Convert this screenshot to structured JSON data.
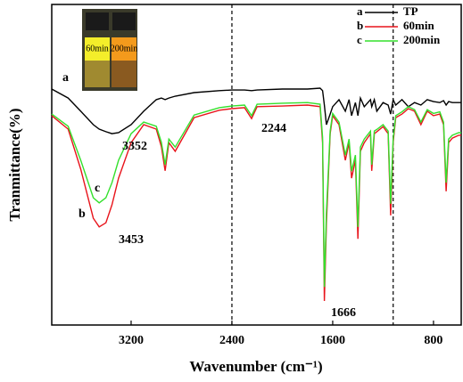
{
  "chart_data": {
    "type": "line",
    "x_label": "Wavenumber (cm⁻¹)",
    "y_label": "Tranmittance(%)",
    "x": [
      3830,
      3700,
      3600,
      3500,
      3453,
      3400,
      3352,
      3300,
      3200,
      3100,
      3000,
      2960,
      2930,
      2900,
      2850,
      2700,
      2500,
      2400,
      2300,
      2244,
      2200,
      2000,
      1800,
      1700,
      1680,
      1666,
      1650,
      1620,
      1600,
      1550,
      1500,
      1470,
      1450,
      1420,
      1400,
      1380,
      1350,
      1300,
      1290,
      1270,
      1250,
      1200,
      1160,
      1140,
      1120,
      1100,
      1050,
      1000,
      950,
      900,
      850,
      800,
      750,
      720,
      700,
      680,
      650,
      600,
      580
    ],
    "series": [
      {
        "name": "TP",
        "label": "a",
        "color": "#000000",
        "values": [
          73.6,
          70.8,
          66.7,
          62.5,
          61.1,
          60.3,
          59.7,
          60,
          62.5,
          66.7,
          70.3,
          70.8,
          70.3,
          70.8,
          71.4,
          72.5,
          73.1,
          73.3,
          73.3,
          73.1,
          73.3,
          73.6,
          73.6,
          73.9,
          73.1,
          68.6,
          62.5,
          65.8,
          68.1,
          70.3,
          66.7,
          70.3,
          65.3,
          69.4,
          65.3,
          70.8,
          68.1,
          70.3,
          68.1,
          70.3,
          66.7,
          69.4,
          68.6,
          65.8,
          70.3,
          68.6,
          70.3,
          68.1,
          69.4,
          68.6,
          70.3,
          69.7,
          69.4,
          70,
          68.6,
          69.7,
          69.4,
          69.4,
          69.4
        ]
      },
      {
        "name": "60min",
        "label": "b",
        "color": "#e8141b",
        "values": [
          65.3,
          61.1,
          48.6,
          33.3,
          30.6,
          31.9,
          37.5,
          45.8,
          56.9,
          62.5,
          61.1,
          55.6,
          48.1,
          56.9,
          54.2,
          64.7,
          67,
          67.5,
          67.8,
          64.4,
          68.1,
          68.3,
          68.6,
          68.1,
          56.9,
          7.5,
          31.9,
          59.7,
          65.3,
          62.5,
          51.4,
          56.9,
          45.8,
          51.4,
          26.9,
          54.2,
          56.9,
          59.7,
          48.1,
          59.7,
          60.3,
          61.9,
          59.7,
          34.2,
          56.9,
          64.7,
          65.8,
          67.5,
          66.7,
          62.5,
          66.7,
          65.3,
          65.8,
          62.5,
          41.7,
          56.9,
          58.3,
          59.2,
          59.2
        ]
      },
      {
        "name": "200min",
        "label": "c",
        "color": "#33e02c",
        "values": [
          65.8,
          62,
          51.4,
          39.7,
          38.1,
          39.7,
          44.4,
          51.4,
          59.7,
          63.3,
          62,
          57,
          50,
          58,
          55.5,
          65.5,
          67.8,
          68.3,
          68.6,
          65.3,
          68.9,
          69.2,
          69.4,
          68.9,
          58.5,
          11.9,
          35,
          60.5,
          66,
          63.3,
          53,
          58,
          48,
          53,
          30.6,
          55.5,
          58,
          60.5,
          50,
          60.5,
          61,
          62.5,
          60.5,
          37.8,
          58,
          65.3,
          66.5,
          68.1,
          67.2,
          63.3,
          67.2,
          66,
          66.5,
          63.3,
          44.4,
          58,
          59.2,
          60,
          60
        ]
      }
    ],
    "xlim": [
      3830,
      580
    ],
    "xticks": [
      3200,
      2400,
      1600,
      800
    ],
    "ylim": [
      0,
      100
    ],
    "yticks": [],
    "reference_lines": [
      2400,
      1120
    ],
    "annotations": [
      "a",
      "b",
      "c",
      "3352",
      "3453",
      "2244",
      "1666"
    ],
    "legend": "upper right",
    "inset_labels": [
      "60min",
      "200min"
    ]
  }
}
